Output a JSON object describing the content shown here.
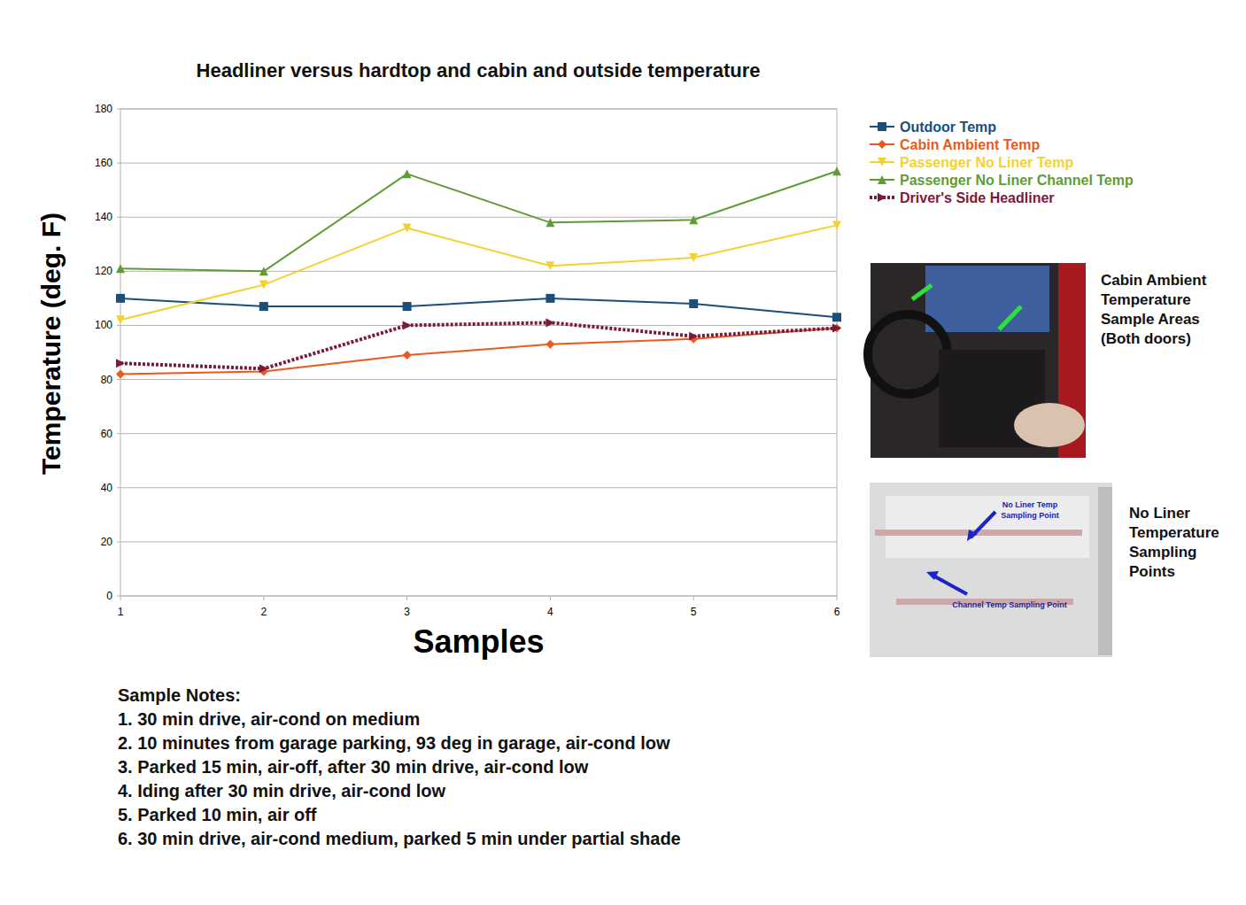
{
  "chart_data": {
    "type": "line",
    "title": "Headliner versus hardtop and cabin and outside temperature",
    "x_label": "Samples",
    "y_label": "Temperature (deg. F)",
    "x": [
      1,
      2,
      3,
      4,
      5,
      6
    ],
    "xlim": [
      1,
      6
    ],
    "xticks": [
      1,
      2,
      3,
      4,
      5,
      6
    ],
    "ylim": [
      0,
      180
    ],
    "yticks": [
      0,
      20,
      40,
      60,
      80,
      100,
      120,
      140,
      160,
      180
    ],
    "grid": true,
    "legend": "right",
    "series": [
      {
        "name": "Outdoor Temp",
        "color": "#1b4f7a",
        "marker": "square",
        "line_style": "solid",
        "values": [
          110,
          107,
          107,
          110,
          108,
          103
        ]
      },
      {
        "name": "Cabin Ambient Temp",
        "color": "#ea5a1e",
        "marker": "diamond",
        "line_style": "solid",
        "values": [
          82,
          83,
          89,
          93,
          95,
          99
        ]
      },
      {
        "name": "Passenger No Liner Temp",
        "color": "#f2d230",
        "marker": "triangle-down",
        "line_style": "solid",
        "values": [
          102,
          115,
          136,
          122,
          125,
          137
        ]
      },
      {
        "name": "Passenger No Liner Channel Temp",
        "color": "#5f9c35",
        "marker": "triangle-up",
        "line_style": "solid",
        "values": [
          121,
          120,
          156,
          138,
          139,
          157
        ]
      },
      {
        "name": "Driver's Side Headliner",
        "color": "#7b1a3c",
        "marker": "triangle-right",
        "line_style": "dotted",
        "values": [
          86,
          84,
          100,
          101,
          96,
          99
        ]
      }
    ],
    "annotations": [
      {
        "lines": [
          "Cabin Ambient",
          "Temperature",
          "Sample Areas",
          "(Both doors)"
        ]
      },
      {
        "lines": [
          "No Liner",
          "Temperature",
          "Sampling",
          "Points"
        ]
      },
      {
        "lines": [
          "No Liner Temp",
          "Sampling Point"
        ]
      },
      {
        "lines": [
          "Channel Temp Sampling Point"
        ]
      }
    ],
    "notes": {
      "title": "Sample Notes:",
      "items": [
        "1. 30 min drive, air-cond on medium",
        "2. 10 minutes from garage parking, 93 deg in garage, air-cond low",
        "3. Parked 15 min, air-off, after 30 min drive, air-cond low",
        "4. Iding after 30 min drive, air-cond low",
        "5. Parked 10 min, air off",
        "6. 30 min drive, air-cond medium, parked 5 min under partial shade"
      ]
    }
  }
}
